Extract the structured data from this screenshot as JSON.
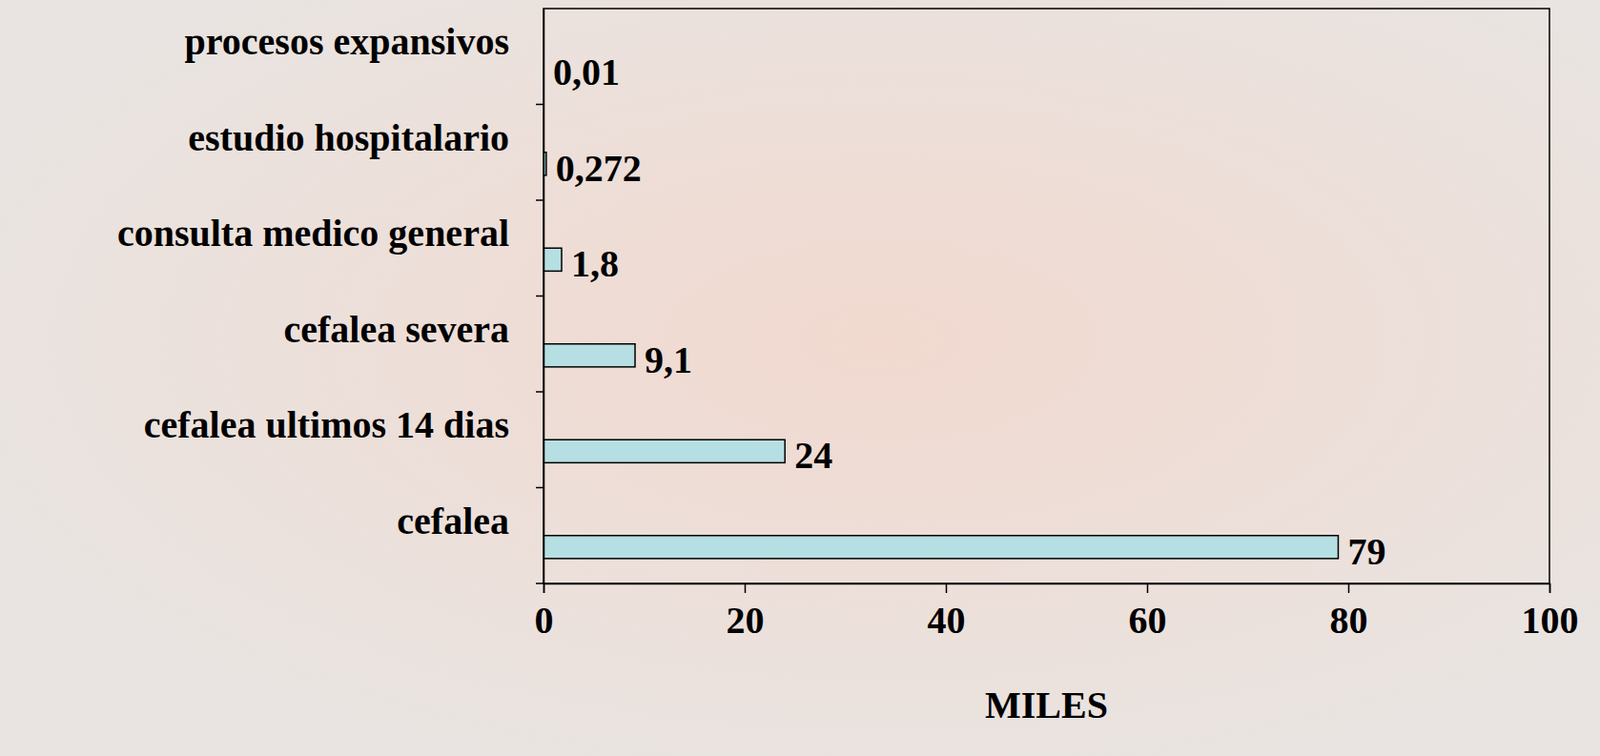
{
  "chart_data": {
    "type": "bar",
    "orientation": "horizontal",
    "categories": [
      "procesos expansivos",
      "estudio hospitalario",
      "consulta medico general",
      "cefalea severa",
      "cefalea ultimos 14 dias",
      "cefalea"
    ],
    "values": [
      0.01,
      0.272,
      1.8,
      9.1,
      24,
      79
    ],
    "value_labels": [
      "0,01",
      "0,272",
      "1,8",
      "9,1",
      "24",
      "79"
    ],
    "data_labels": true,
    "color": "#b5dfe2",
    "xlim": [
      0,
      100
    ],
    "xticks": [
      0,
      20,
      40,
      60,
      80,
      100
    ],
    "x_label": "MILES",
    "grid": false
  }
}
